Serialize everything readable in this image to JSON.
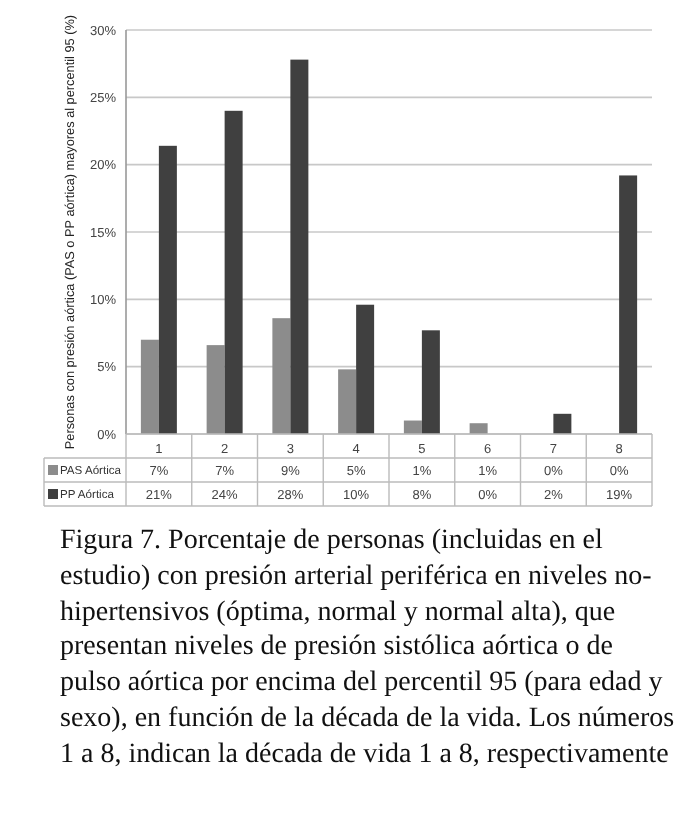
{
  "chart_data": {
    "type": "bar",
    "ylabel": "Personas con presión aórtica (PAS o PP aórtica) mayores al percentil  95 (%)",
    "categories": [
      "1",
      "2",
      "3",
      "4",
      "5",
      "6",
      "7",
      "8"
    ],
    "series": [
      {
        "name": "PAS Aórtica",
        "color": "#8c8c8c",
        "values": [
          7,
          6.6,
          8.6,
          4.8,
          1,
          0.8,
          0,
          0
        ],
        "value_labels": [
          "7%",
          "7%",
          "9%",
          "5%",
          "1%",
          "1%",
          "0%",
          "0%"
        ]
      },
      {
        "name": "PP Aórtica",
        "color": "#404040",
        "values": [
          21.4,
          24,
          27.8,
          9.6,
          7.7,
          0,
          1.5,
          19.2
        ],
        "value_labels": [
          "21%",
          "24%",
          "28%",
          "10%",
          "8%",
          "0%",
          "2%",
          "19%"
        ]
      }
    ],
    "ylim": [
      0,
      30
    ],
    "yticks": [
      {
        "value": 0,
        "label": "0%"
      },
      {
        "value": 5,
        "label": "5%"
      },
      {
        "value": 10,
        "label": "10%"
      },
      {
        "value": 15,
        "label": "15%"
      },
      {
        "value": 20,
        "label": "20%"
      },
      {
        "value": 25,
        "label": "25%"
      },
      {
        "value": 30,
        "label": "30%"
      }
    ],
    "grid": "y",
    "legend": "bottom",
    "annotations": [
      "Figura 7. Porcentaje de personas (incluidas en el estudio) con presión arterial periférica en niveles no-hipertensivos (óptima, normal y normal alta), que presentan niveles de presión sistólica aórtica o de pulso aórtica por encima del percentil 95 (para edad y sexo), en función de la década de la vida. Los números 1 a 8, indican la década de vida 1 a 8, respectivamente"
    ]
  }
}
